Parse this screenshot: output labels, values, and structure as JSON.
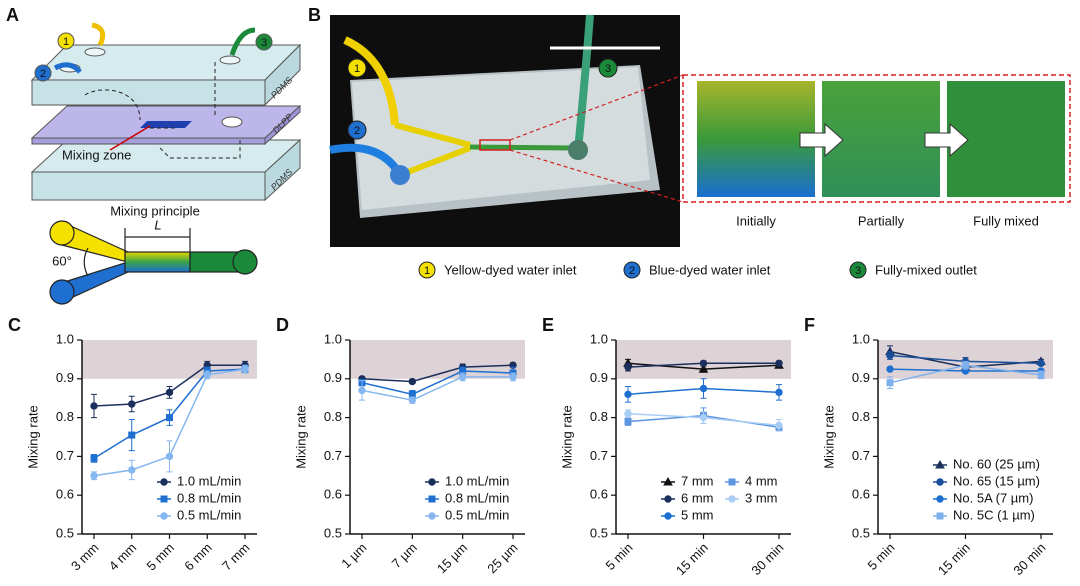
{
  "figure": {
    "panel_a": {
      "letter": "A",
      "layers": [
        "PDMS",
        "DLPP",
        "PDMS"
      ],
      "mixing_zone": "Mixing zone",
      "principle_title": "Mixing principle",
      "length": "L",
      "angle": "60°",
      "ports": [
        "1",
        "2",
        "3"
      ]
    },
    "panel_b": {
      "letter": "B",
      "ports": [
        "1",
        "2",
        "3"
      ],
      "stages": [
        "Initially",
        "Partially",
        "Fully mixed"
      ],
      "legend": [
        {
          "number": "1",
          "text": "Yellow-dyed water inlet"
        },
        {
          "number": "2",
          "text": "Blue-dyed water inlet"
        },
        {
          "number": "3",
          "text": "Fully-mixed outlet"
        }
      ]
    }
  },
  "chart_data": [
    {
      "type": "line",
      "panel_label": "C",
      "y_label": "Mixing rate",
      "categories": [
        "3 mm",
        "4 mm",
        "5 mm",
        "6 mm",
        "7 mm"
      ],
      "ylim": [
        0.5,
        1
      ],
      "yticks": [
        0.5,
        0.6,
        0.7,
        0.8,
        0.9,
        {
          "value": 1,
          "label": "1.0"
        }
      ],
      "shaded_range": [
        0.9,
        1
      ],
      "legend": "lower right",
      "legend_columns": 1,
      "series": [
        {
          "name": "1.0 mL/min",
          "color": "#1b2f5c",
          "marker": "circle",
          "values": [
            0.83,
            0.835,
            0.865,
            0.935,
            0.935
          ],
          "errors": [
            0.03,
            0.02,
            0.015,
            0.01,
            0.01
          ]
        },
        {
          "name": "0.8 mL/min",
          "color": "#1f6fd1",
          "marker": "square",
          "values": [
            0.695,
            0.755,
            0.8,
            0.92,
            0.925
          ],
          "errors": [
            0.01,
            0.04,
            0.02,
            0.01,
            0.01
          ]
        },
        {
          "name": "0.5 mL/min",
          "color": "#85b6f0",
          "marker": "circle",
          "values": [
            0.65,
            0.665,
            0.7,
            0.91,
            0.925
          ],
          "errors": [
            0.01,
            0.025,
            0.04,
            0.01,
            0.01
          ]
        }
      ]
    },
    {
      "type": "line",
      "panel_label": "D",
      "y_label": "Mixing rate",
      "categories": [
        "1 µm",
        "7 µm",
        "15 µm",
        "25 µm"
      ],
      "ylim": [
        0.5,
        1
      ],
      "yticks": [
        0.5,
        0.6,
        0.7,
        0.8,
        0.9,
        {
          "value": 1,
          "label": "1.0"
        }
      ],
      "shaded_range": [
        0.9,
        1
      ],
      "legend": "lower right",
      "legend_columns": 1,
      "series": [
        {
          "name": "1.0 mL/min",
          "color": "#1b2f5c",
          "marker": "circle",
          "values": [
            0.9,
            0.893,
            0.93,
            0.935
          ],
          "errors": [
            0.005,
            0.005,
            0.008,
            0.006
          ]
        },
        {
          "name": "0.8 mL/min",
          "color": "#1f6fd1",
          "marker": "square",
          "values": [
            0.89,
            0.86,
            0.92,
            0.915
          ],
          "errors": [
            0.008,
            0.01,
            0.01,
            0.015
          ]
        },
        {
          "name": "0.5 mL/min",
          "color": "#85b6f0",
          "marker": "circle",
          "values": [
            0.87,
            0.845,
            0.905,
            0.905
          ],
          "errors": [
            0.025,
            0.008,
            0.01,
            0.01
          ]
        }
      ]
    },
    {
      "type": "line",
      "panel_label": "E",
      "y_label": "Mixing rate",
      "categories": [
        "5 min",
        "15 min",
        "30 min"
      ],
      "ylim": [
        0.5,
        1
      ],
      "yticks": [
        0.5,
        0.6,
        0.7,
        0.8,
        0.9,
        {
          "value": 1,
          "label": "1.0"
        }
      ],
      "shaded_range": [
        0.9,
        1
      ],
      "legend": "lower right",
      "legend_columns": 2,
      "series": [
        {
          "name": "7 mm",
          "color": "#111111",
          "marker": "triangle",
          "values": [
            0.94,
            0.925,
            0.935
          ],
          "errors": [
            0.01,
            0.008,
            0.006
          ]
        },
        {
          "name": "6 mm",
          "color": "#1b2f5c",
          "marker": "circle",
          "values": [
            0.93,
            0.94,
            0.94
          ],
          "errors": [
            0.01,
            0.006,
            0.006
          ]
        },
        {
          "name": "5 mm",
          "color": "#1f6fd1",
          "marker": "circle",
          "values": [
            0.86,
            0.875,
            0.865
          ],
          "errors": [
            0.02,
            0.025,
            0.02
          ]
        },
        {
          "name": "4 mm",
          "color": "#5b95e0",
          "marker": "square",
          "values": [
            0.79,
            0.805,
            0.775
          ],
          "errors": [
            0.01,
            0.02,
            0.008
          ]
        },
        {
          "name": "3 mm",
          "color": "#a9cdf5",
          "marker": "circle",
          "values": [
            0.81,
            0.8,
            0.78
          ],
          "errors": [
            0.01,
            0.015,
            0.015
          ]
        }
      ]
    },
    {
      "type": "line",
      "panel_label": "F",
      "y_label": "Mixing rate",
      "categories": [
        "5 min",
        "15 min",
        "30 min"
      ],
      "ylim": [
        0.5,
        1
      ],
      "yticks": [
        0.5,
        0.6,
        0.7,
        0.8,
        0.9,
        {
          "value": 1,
          "label": "1.0"
        }
      ],
      "shaded_range": [
        0.9,
        1
      ],
      "legend": "lower right",
      "legend_columns": 1,
      "series": [
        {
          "name": "No. 60 (25 µm)",
          "color": "#1b2f5c",
          "marker": "triangle",
          "values": [
            0.97,
            0.93,
            0.945
          ],
          "errors": [
            0.015,
            0.01,
            0.005
          ]
        },
        {
          "name": "No. 65 (15 µm)",
          "color": "#1a4f9c",
          "marker": "circle",
          "values": [
            0.96,
            0.945,
            0.94
          ],
          "errors": [
            0.01,
            0.01,
            0.005
          ]
        },
        {
          "name": "No. 5A (7 µm)",
          "color": "#1f6fd1",
          "marker": "circle",
          "values": [
            0.925,
            0.92,
            0.92
          ],
          "errors": [
            0.005,
            0.005,
            0.005
          ]
        },
        {
          "name": "No. 5C (1 µm)",
          "color": "#7fb0ee",
          "marker": "square",
          "values": [
            0.89,
            0.935,
            0.91
          ],
          "errors": [
            0.015,
            0.01,
            0.01
          ]
        }
      ]
    }
  ]
}
